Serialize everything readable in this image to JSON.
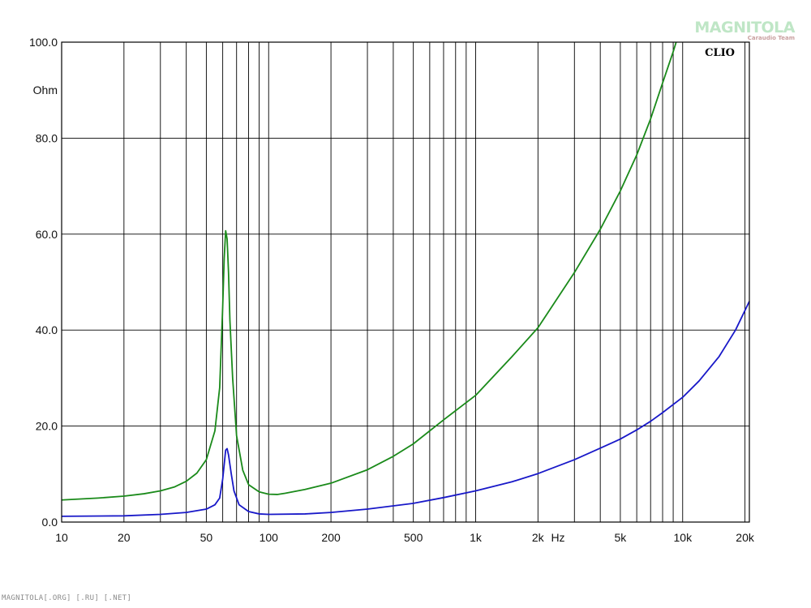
{
  "chart_data": {
    "type": "line",
    "x_scale": "log",
    "xlim": [
      10,
      21000
    ],
    "ylim": [
      0,
      100
    ],
    "grid": true,
    "y_unit": "Ohm",
    "x_unit": "Hz",
    "y_ticks": [
      "0.0",
      "20.0",
      "40.0",
      "60.0",
      "80.0",
      "100.0"
    ],
    "x_ticks": [
      {
        "value": 10,
        "label": "10"
      },
      {
        "value": 20,
        "label": "20"
      },
      {
        "value": 50,
        "label": "50"
      },
      {
        "value": 100,
        "label": "100"
      },
      {
        "value": 200,
        "label": "200"
      },
      {
        "value": 500,
        "label": "500"
      },
      {
        "value": 1000,
        "label": "1k"
      },
      {
        "value": 2000,
        "label": "2k"
      },
      {
        "value": 5000,
        "label": "5k"
      },
      {
        "value": 10000,
        "label": "10k"
      },
      {
        "value": 20000,
        "label": "20k"
      }
    ],
    "series": [
      {
        "color": "#1a8a1a",
        "points": [
          [
            10,
            4.6
          ],
          [
            15,
            5.0
          ],
          [
            20,
            5.4
          ],
          [
            25,
            5.9
          ],
          [
            30,
            6.5
          ],
          [
            35,
            7.3
          ],
          [
            40,
            8.5
          ],
          [
            45,
            10.2
          ],
          [
            50,
            13.0
          ],
          [
            55,
            19.0
          ],
          [
            58,
            28.0
          ],
          [
            60,
            45.0
          ],
          [
            61,
            55.0
          ],
          [
            62,
            60.7
          ],
          [
            63,
            59.0
          ],
          [
            64,
            52.0
          ],
          [
            65,
            42.0
          ],
          [
            67,
            30.0
          ],
          [
            70,
            18.0
          ],
          [
            75,
            10.8
          ],
          [
            80,
            7.8
          ],
          [
            90,
            6.3
          ],
          [
            100,
            5.8
          ],
          [
            110,
            5.75
          ],
          [
            120,
            6.0
          ],
          [
            150,
            6.8
          ],
          [
            200,
            8.1
          ],
          [
            300,
            10.9
          ],
          [
            400,
            13.7
          ],
          [
            500,
            16.3
          ],
          [
            700,
            21.3
          ],
          [
            1000,
            26.4
          ],
          [
            1500,
            34.5
          ],
          [
            2000,
            40.5
          ],
          [
            3000,
            52.0
          ],
          [
            4000,
            61.0
          ],
          [
            5000,
            69.0
          ],
          [
            6000,
            76.5
          ],
          [
            7000,
            84.0
          ],
          [
            8000,
            91.5
          ],
          [
            9000,
            98.0
          ],
          [
            9300,
            100.0
          ]
        ]
      },
      {
        "color": "#1818c8",
        "points": [
          [
            10,
            1.2
          ],
          [
            20,
            1.3
          ],
          [
            30,
            1.6
          ],
          [
            40,
            2.0
          ],
          [
            50,
            2.7
          ],
          [
            55,
            3.6
          ],
          [
            58,
            5.0
          ],
          [
            60,
            9.0
          ],
          [
            61,
            12.0
          ],
          [
            62,
            15.0
          ],
          [
            63,
            15.3
          ],
          [
            64,
            14.0
          ],
          [
            66,
            10.0
          ],
          [
            68,
            6.5
          ],
          [
            72,
            3.6
          ],
          [
            80,
            2.2
          ],
          [
            90,
            1.7
          ],
          [
            100,
            1.6
          ],
          [
            150,
            1.7
          ],
          [
            200,
            2.0
          ],
          [
            300,
            2.7
          ],
          [
            500,
            3.9
          ],
          [
            700,
            5.1
          ],
          [
            1000,
            6.5
          ],
          [
            1500,
            8.4
          ],
          [
            2000,
            10.1
          ],
          [
            3000,
            13.0
          ],
          [
            4000,
            15.4
          ],
          [
            5000,
            17.3
          ],
          [
            6000,
            19.2
          ],
          [
            7000,
            21.0
          ],
          [
            8000,
            22.8
          ],
          [
            10000,
            26.0
          ],
          [
            12000,
            29.4
          ],
          [
            15000,
            34.5
          ],
          [
            18000,
            40.0
          ],
          [
            21000,
            46.0
          ]
        ]
      }
    ]
  },
  "brand_label": "CLIO",
  "logo": {
    "name": "MAGNITOLA",
    "sub": "Caraudio Team"
  },
  "footer": "MAGNITOLA[.ORG] [.RU] [.NET]"
}
